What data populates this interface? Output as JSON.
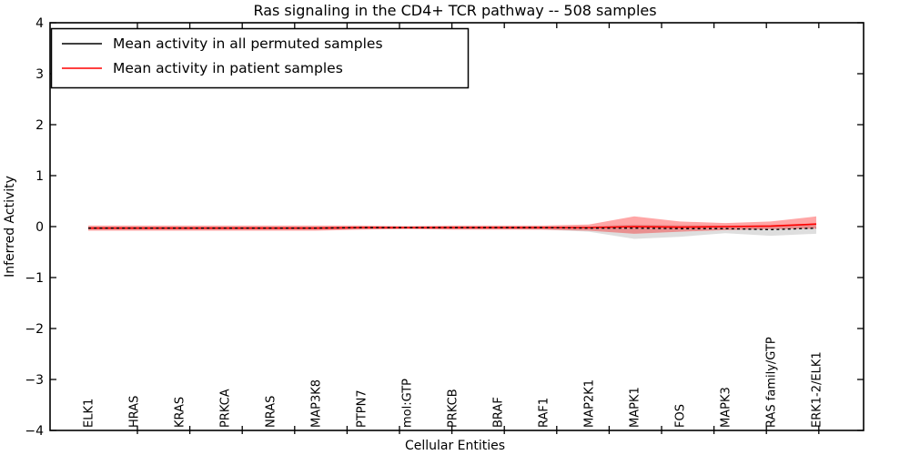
{
  "chart_data": {
    "type": "line",
    "title": "Ras signaling in the CD4+ TCR pathway -- 508 samples",
    "xlabel": "Cellular Entities",
    "ylabel": "Inferred Activity",
    "ylim": [
      -4,
      4
    ],
    "yticks": [
      "4",
      "3",
      "2",
      "1",
      "0",
      "−1",
      "−2",
      "−3",
      "−4"
    ],
    "ytick_values": [
      4,
      3,
      2,
      1,
      0,
      -1,
      -2,
      -3,
      -4
    ],
    "grid": false,
    "legend_position": "upper left",
    "categories": [
      "ELK1",
      "HRAS",
      "KRAS",
      "PRKCA",
      "NRAS",
      "MAP3K8",
      "PTPN7",
      "mol:GTP",
      "PRKCB",
      "BRAF",
      "RAF1",
      "MAP2K1",
      "MAPK1",
      "FOS",
      "MAPK3",
      "RAS family/GTP",
      "ERK1-2/ELK1"
    ],
    "series": [
      {
        "name": "Mean activity in all permuted samples",
        "color": "#000000",
        "style": "dotted-on-plot",
        "values": [
          -0.03,
          -0.03,
          -0.03,
          -0.03,
          -0.03,
          -0.03,
          -0.02,
          -0.02,
          -0.02,
          -0.02,
          -0.02,
          -0.03,
          -0.03,
          -0.04,
          -0.04,
          -0.06,
          -0.03
        ]
      },
      {
        "name": "Mean activity in patient samples",
        "color": "#ff0000",
        "style": "solid",
        "values": [
          -0.03,
          -0.03,
          -0.03,
          -0.03,
          -0.03,
          -0.03,
          -0.02,
          -0.02,
          -0.02,
          -0.02,
          -0.02,
          -0.02,
          0.0,
          -0.01,
          0.0,
          0.01,
          0.05
        ]
      }
    ],
    "bands": [
      {
        "name": "permuted-samples-spread",
        "color": "#000000",
        "alpha": 0.13,
        "upper": [
          0.0,
          0.0,
          0.0,
          0.0,
          0.0,
          0.0,
          0.0,
          0.0,
          0.0,
          0.0,
          0.0,
          0.01,
          0.04,
          0.03,
          0.02,
          0.03,
          0.06
        ],
        "lower": [
          -0.06,
          -0.06,
          -0.06,
          -0.06,
          -0.06,
          -0.06,
          -0.05,
          -0.04,
          -0.05,
          -0.05,
          -0.06,
          -0.1,
          -0.24,
          -0.2,
          -0.13,
          -0.18,
          -0.14
        ]
      },
      {
        "name": "patient-samples-spread",
        "color": "#ff0000",
        "alpha": 0.35,
        "upper": [
          0.02,
          0.02,
          0.02,
          0.02,
          0.02,
          0.02,
          0.02,
          0.01,
          0.02,
          0.02,
          0.02,
          0.04,
          0.2,
          0.1,
          0.07,
          0.1,
          0.2
        ],
        "lower": [
          -0.08,
          -0.08,
          -0.08,
          -0.08,
          -0.08,
          -0.08,
          -0.06,
          -0.05,
          -0.06,
          -0.06,
          -0.06,
          -0.08,
          -0.14,
          -0.1,
          -0.07,
          -0.05,
          -0.04
        ]
      }
    ]
  }
}
